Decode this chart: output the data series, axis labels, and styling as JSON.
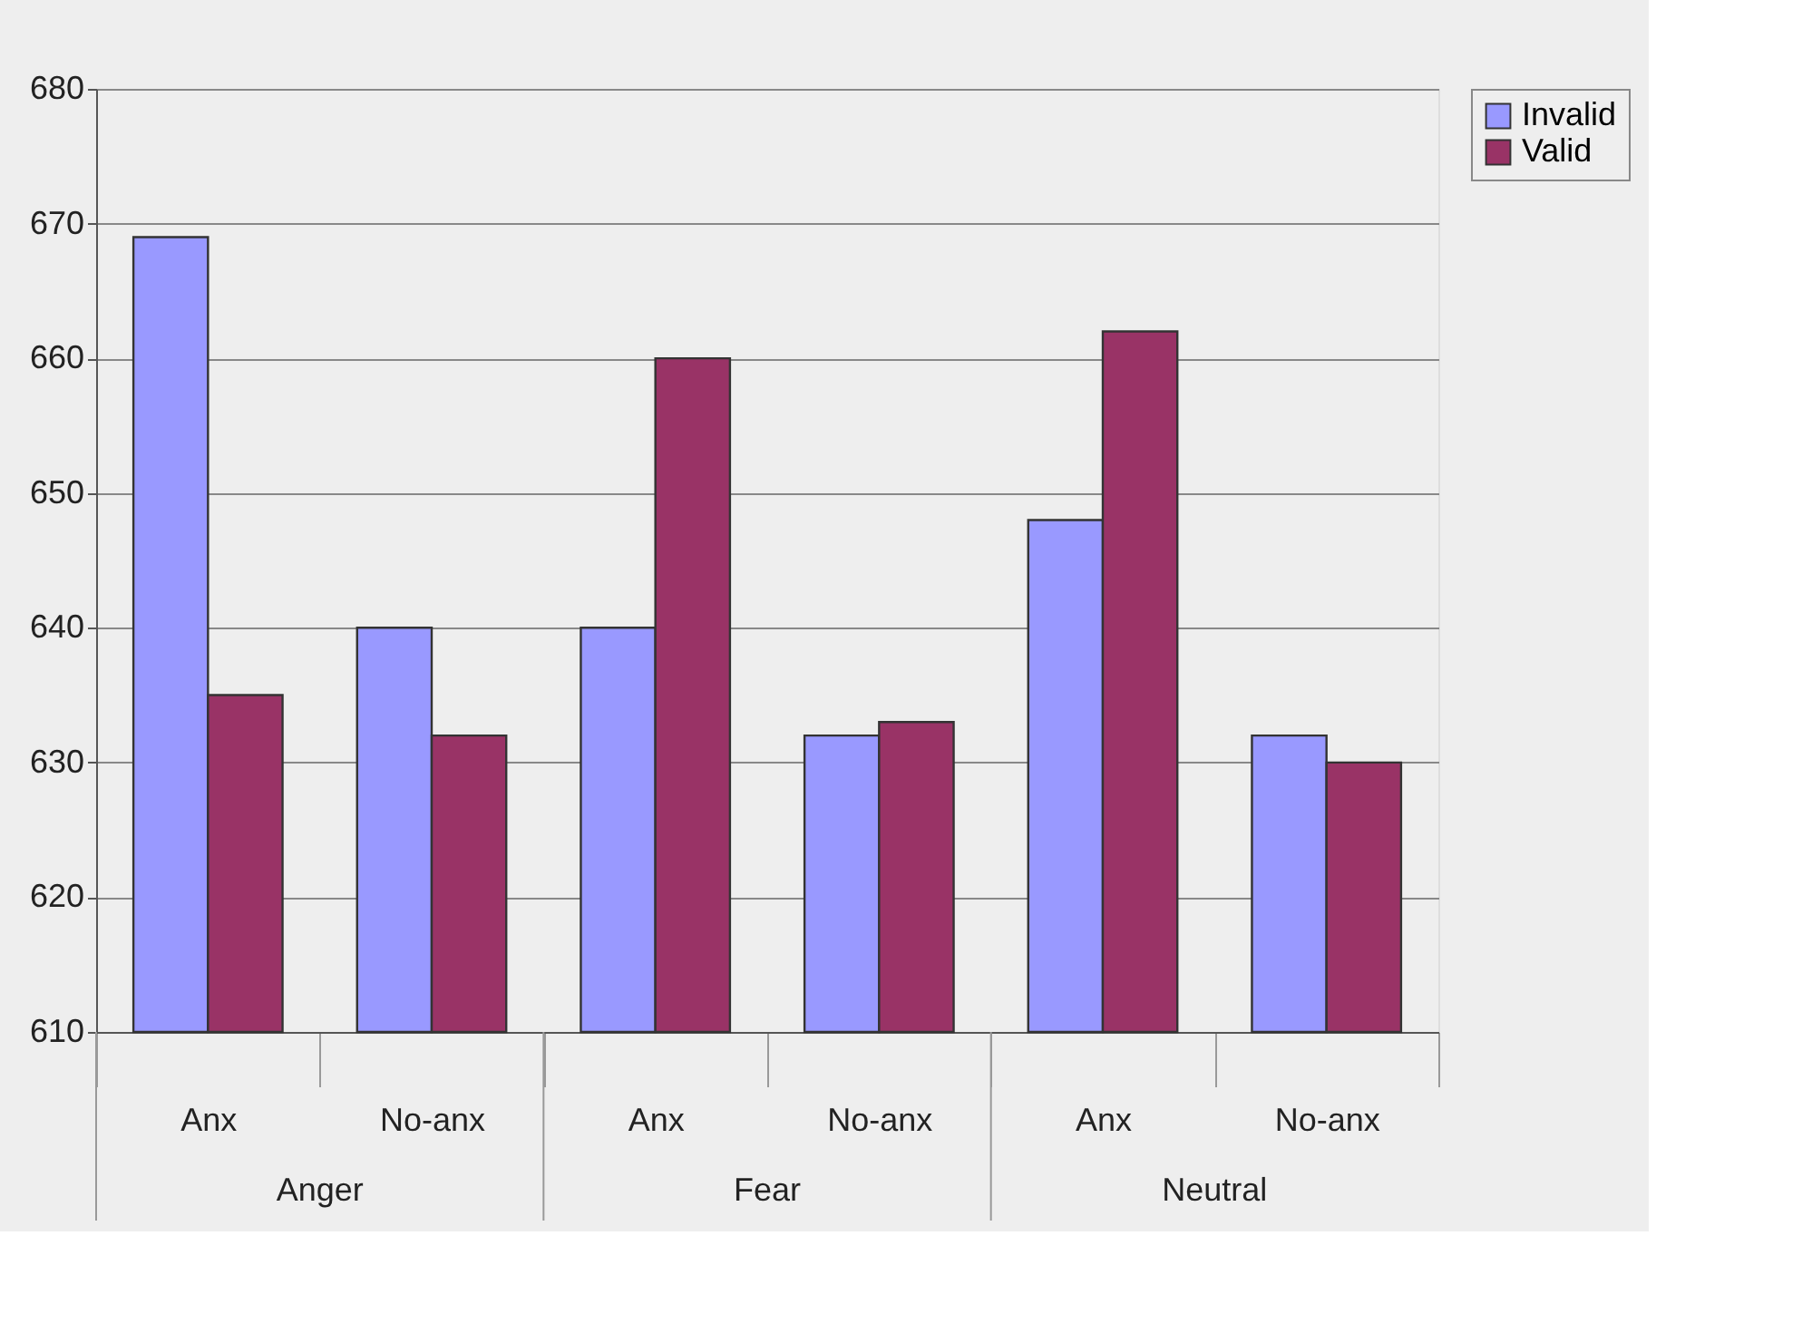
{
  "chart_data": {
    "type": "bar",
    "categories": [
      "Anx",
      "No-anx",
      "Anx",
      "No-anx",
      "Anx",
      "No-anx"
    ],
    "series": [
      {
        "name": "Invalid",
        "color": "#9999ff",
        "values": [
          669,
          640,
          640,
          632,
          648,
          632
        ]
      },
      {
        "name": "Valid",
        "color": "#993366",
        "values": [
          635,
          632,
          660,
          633,
          662,
          630
        ]
      }
    ],
    "annotations": [
      "Anger",
      "Fear",
      "Neutral"
    ],
    "ylim": [
      610,
      680
    ],
    "yticks": [
      610,
      620,
      630,
      640,
      650,
      660,
      670,
      680
    ],
    "grid": "y",
    "legend": "right"
  }
}
